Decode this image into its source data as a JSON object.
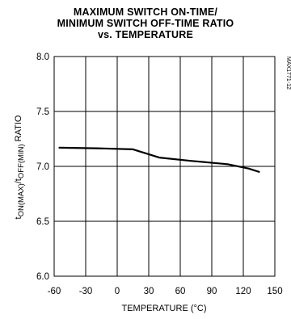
{
  "chart_data": {
    "type": "line",
    "title_lines": [
      "MAXIMUM SWITCH ON-TIME/",
      "MINIMUM SWITCH OFF-TIME RATIO",
      "vs. TEMPERATURE"
    ],
    "xlabel": "TEMPERATURE (°C)",
    "ylabel": {
      "t1": "t",
      "sub1": "ON(MAX)",
      "t2": "/t",
      "sub2": "OFF(MIN)",
      "t3": " RATIO"
    },
    "code": "MAX1771-12",
    "xlim": [
      -60,
      150
    ],
    "ylim": [
      6.0,
      8.0
    ],
    "xticks": [
      -60,
      -30,
      0,
      30,
      60,
      90,
      120,
      150
    ],
    "xtick_labels": [
      "-60",
      "-30",
      "0",
      "30",
      "60",
      "90",
      "120",
      "150"
    ],
    "yticks": [
      6.0,
      6.5,
      7.0,
      7.5,
      8.0
    ],
    "ytick_labels": [
      "6.0",
      "6.5",
      "7.0",
      "7.5",
      "8.0"
    ],
    "grid": true,
    "series": [
      {
        "x": [
          -55,
          -20,
          15,
          40,
          70,
          105,
          125,
          135
        ],
        "y": [
          7.17,
          7.165,
          7.155,
          7.08,
          7.05,
          7.02,
          6.98,
          6.95
        ]
      }
    ]
  }
}
